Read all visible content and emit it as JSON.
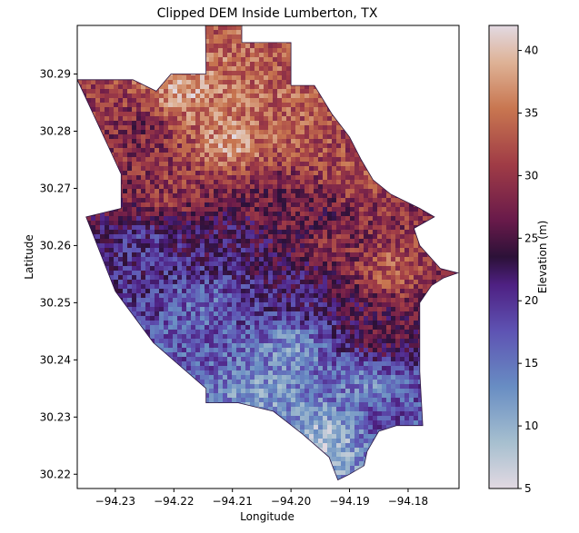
{
  "chart_data": {
    "type": "heatmap",
    "title": "Clipped DEM Inside Lumberton, TX",
    "xlabel": "Longitude",
    "ylabel": "Latitude",
    "colorbar_label": "Elevation (m)",
    "colormap": "twilight_shifted",
    "xlim": [
      -94.2365,
      -94.1713
    ],
    "ylim": [
      30.2175,
      30.2985
    ],
    "xticks": [
      -94.23,
      -94.22,
      -94.21,
      -94.2,
      -94.19,
      -94.18
    ],
    "xtick_labels": [
      "−94.23",
      "−94.22",
      "−94.21",
      "−94.20",
      "−94.19",
      "−94.18"
    ],
    "yticks": [
      30.22,
      30.23,
      30.24,
      30.25,
      30.26,
      30.27,
      30.28,
      30.29
    ],
    "ytick_labels": [
      "30.22",
      "30.23",
      "30.24",
      "30.25",
      "30.26",
      "30.27",
      "30.28",
      "30.29"
    ],
    "colorbar_range": [
      5,
      42
    ],
    "colorbar_ticks": [
      5,
      10,
      15,
      20,
      25,
      30,
      35,
      40
    ],
    "colorbar_tick_labels": [
      "5",
      "10",
      "15",
      "20",
      "25",
      "30",
      "35",
      "40"
    ],
    "boundary_polygon": [
      [
        -94.2146,
        30.2985
      ],
      [
        -94.2084,
        30.2985
      ],
      [
        -94.2084,
        30.2955
      ],
      [
        -94.2,
        30.2955
      ],
      [
        -94.2,
        30.288
      ],
      [
        -94.196,
        30.288
      ],
      [
        -94.193,
        30.283
      ],
      [
        -94.19,
        30.279
      ],
      [
        -94.188,
        30.275
      ],
      [
        -94.186,
        30.2715
      ],
      [
        -94.183,
        30.269
      ],
      [
        -94.178,
        30.2665
      ],
      [
        -94.1755,
        30.265
      ],
      [
        -94.179,
        30.263
      ],
      [
        -94.178,
        30.26
      ],
      [
        -94.1745,
        30.256
      ],
      [
        -94.1715,
        30.2552
      ],
      [
        -94.174,
        30.2543
      ],
      [
        -94.176,
        30.253
      ],
      [
        -94.178,
        30.25
      ],
      [
        -94.178,
        30.238
      ],
      [
        -94.1775,
        30.2285
      ],
      [
        -94.182,
        30.2285
      ],
      [
        -94.185,
        30.2275
      ],
      [
        -94.187,
        30.224
      ],
      [
        -94.1875,
        30.2215
      ],
      [
        -94.19,
        30.22
      ],
      [
        -94.192,
        30.219
      ],
      [
        -94.1935,
        30.223
      ],
      [
        -94.198,
        30.227
      ],
      [
        -94.203,
        30.231
      ],
      [
        -94.209,
        30.2325
      ],
      [
        -94.2145,
        30.2325
      ],
      [
        -94.2145,
        30.235
      ],
      [
        -94.2235,
        30.243
      ],
      [
        -94.23,
        30.252
      ],
      [
        -94.235,
        30.265
      ],
      [
        -94.229,
        30.2665
      ],
      [
        -94.229,
        30.2725
      ],
      [
        -94.2365,
        30.289
      ],
      [
        -94.227,
        30.289
      ],
      [
        -94.223,
        30.287
      ],
      [
        -94.2205,
        30.29
      ],
      [
        -94.2145,
        30.29
      ]
    ],
    "elevation_centers": [
      {
        "lon": -94.218,
        "lat": 30.287,
        "elev": 38
      },
      {
        "lon": -94.209,
        "lat": 30.284,
        "elev": 35
      },
      {
        "lon": -94.21,
        "lat": 30.2785,
        "elev": 38
      },
      {
        "lon": -94.199,
        "lat": 30.28,
        "elev": 33
      },
      {
        "lon": -94.225,
        "lat": 30.28,
        "elev": 28
      },
      {
        "lon": -94.19,
        "lat": 30.272,
        "elev": 32
      },
      {
        "lon": -94.221,
        "lat": 30.27,
        "elev": 30
      },
      {
        "lon": -94.205,
        "lat": 30.269,
        "elev": 27
      },
      {
        "lon": -94.183,
        "lat": 30.256,
        "elev": 33
      },
      {
        "lon": -94.192,
        "lat": 30.26,
        "elev": 29
      },
      {
        "lon": -94.21,
        "lat": 30.261,
        "elev": 22
      },
      {
        "lon": -94.225,
        "lat": 30.26,
        "elev": 20
      },
      {
        "lon": -94.199,
        "lat": 30.252,
        "elev": 22
      },
      {
        "lon": -94.185,
        "lat": 30.245,
        "elev": 26
      },
      {
        "lon": -94.215,
        "lat": 30.25,
        "elev": 16
      },
      {
        "lon": -94.2,
        "lat": 30.242,
        "elev": 13
      },
      {
        "lon": -94.187,
        "lat": 30.235,
        "elev": 14
      },
      {
        "lon": -94.205,
        "lat": 30.234,
        "elev": 12
      },
      {
        "lon": -94.194,
        "lat": 30.226,
        "elev": 9
      },
      {
        "lon": -94.22,
        "lat": 30.242,
        "elev": 17
      },
      {
        "lon": -94.184,
        "lat": 30.23,
        "elev": 18
      },
      {
        "lon": -94.203,
        "lat": 30.282,
        "elev": 34
      },
      {
        "lon": -94.195,
        "lat": 30.266,
        "elev": 26
      }
    ]
  }
}
